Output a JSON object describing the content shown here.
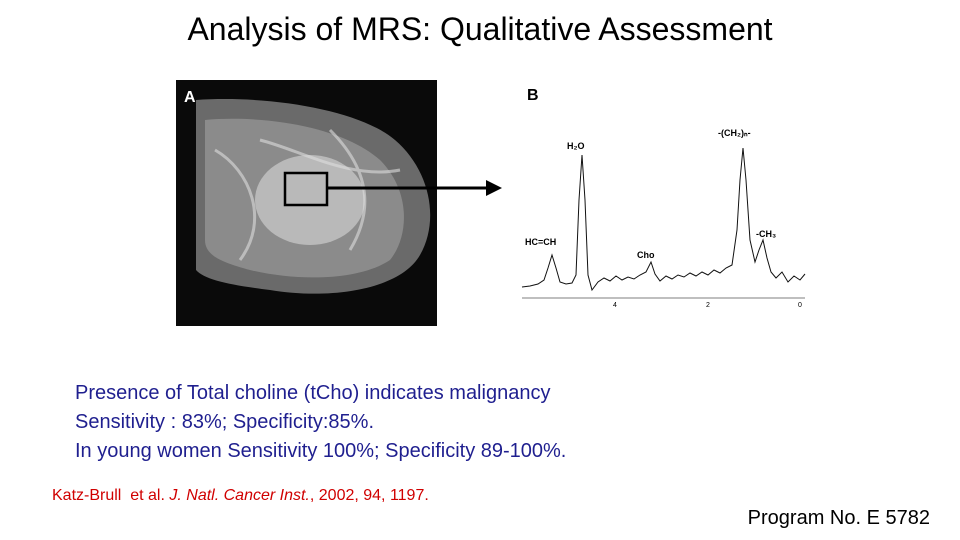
{
  "title": "Analysis of MRS: Qualitative Assessment",
  "panel_a": {
    "label": "A"
  },
  "panel_b": {
    "label": "B",
    "peaks": [
      "HC=CH",
      "H₂O",
      "Cho",
      "-(CH₂)ₙ-",
      "-CH₃"
    ],
    "axis_ticks": [
      "4",
      "2",
      "0"
    ]
  },
  "bullets": [
    "Presence of Total choline (tCho) indicates malignancy",
    "Sensitivity : 83%; Specificity:85%.",
    "In young women Sensitivity 100%; Specificity 89-100%."
  ],
  "citation": {
    "authors": "Katz-Brull  et al. ",
    "journal": "J. Natl. Cancer Inst.",
    "details": ", 2002, 94, 1197."
  },
  "program": "Program No. E 5782"
}
